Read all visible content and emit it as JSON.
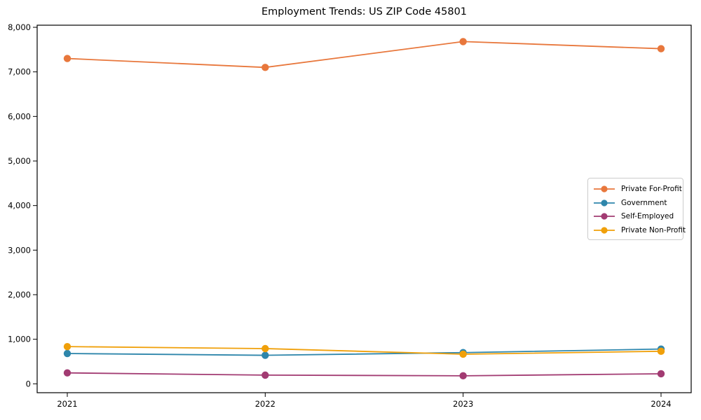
{
  "chart_data": {
    "type": "line",
    "title": "Employment Trends: US ZIP Code 45801",
    "xlabel": "",
    "ylabel": "",
    "categories": [
      "2021",
      "2022",
      "2023",
      "2024"
    ],
    "x_values": [
      2021,
      2022,
      2023,
      2024
    ],
    "ylim": [
      0,
      8000
    ],
    "y_ticks": [
      0,
      1000,
      2000,
      3000,
      4000,
      5000,
      6000,
      7000,
      8000
    ],
    "y_tick_labels": [
      "0",
      "1,000",
      "2,000",
      "3,000",
      "4,000",
      "5,000",
      "6,000",
      "7,000",
      "8,000"
    ],
    "grid": false,
    "legend_position": "center-right",
    "marker": "circle",
    "series": [
      {
        "name": "Private For-Profit",
        "color": "#e8773c",
        "values": [
          7300,
          7100,
          7680,
          7520
        ]
      },
      {
        "name": "Government",
        "color": "#2e86ab",
        "values": [
          680,
          640,
          700,
          780
        ]
      },
      {
        "name": "Self-Employed",
        "color": "#a23b72",
        "values": [
          245,
          195,
          180,
          225
        ]
      },
      {
        "name": "Private Non-Profit",
        "color": "#f0a00a",
        "values": [
          835,
          790,
          665,
          730
        ]
      }
    ],
    "axis_color": "#000000",
    "background_color": "#ffffff"
  }
}
